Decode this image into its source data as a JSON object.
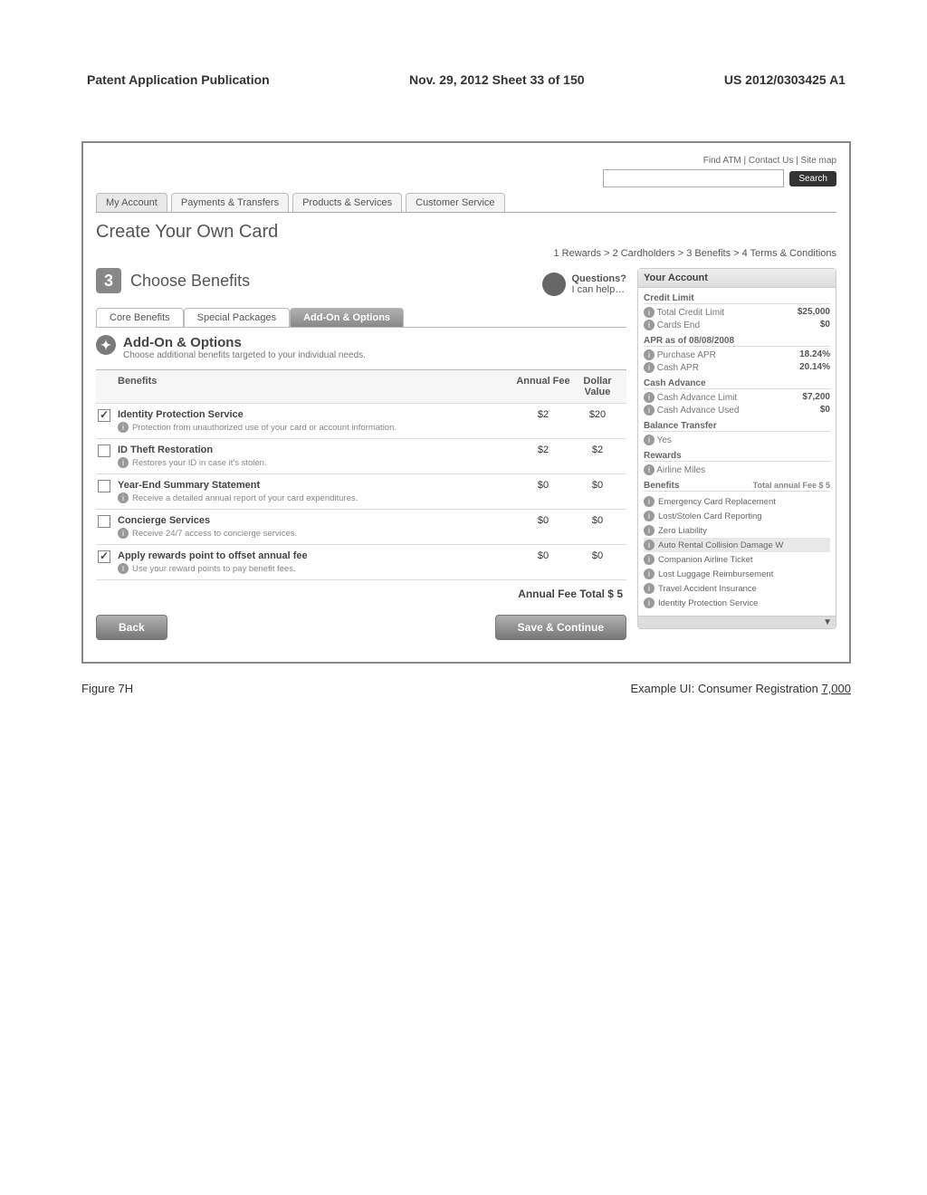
{
  "publication": {
    "left": "Patent Application Publication",
    "center": "Nov. 29, 2012  Sheet 33 of 150",
    "right": "US 2012/0303425 A1"
  },
  "topUtil": "Find ATM | Contact Us | Site map",
  "search": {
    "btn": "Search"
  },
  "navTabs": {
    "items": [
      "My Account",
      "Payments & Transfers",
      "Products & Services",
      "Customer Service"
    ],
    "activeIndex": 0
  },
  "pageTitle": "Create Your Own Card",
  "breadcrumb": "1 Rewards > 2 Cardholders > 3 Benefits > 4 Terms & Conditions",
  "step": {
    "num": "3",
    "title": "Choose Benefits"
  },
  "questions": {
    "label": "Questions?",
    "sub": "I can help…"
  },
  "subTabs": {
    "items": [
      "Core Benefits",
      "Special Packages",
      "Add-On & Options"
    ],
    "activeIndex": 2
  },
  "section": {
    "title": "Add-On & Options",
    "sub": "Choose additional benefits targeted to your individual needs."
  },
  "benefitTable": {
    "headers": {
      "name": "Benefits",
      "fee": "Annual Fee",
      "val": "Dollar Value"
    },
    "rows": [
      {
        "checked": true,
        "name": "Identity Protection Service",
        "desc": "Protection from unauthorized use of your card or account information.",
        "fee": "$2",
        "val": "$20"
      },
      {
        "checked": false,
        "name": "ID Theft Restoration",
        "desc": "Restores your ID in case it's stolen.",
        "fee": "$2",
        "val": "$2"
      },
      {
        "checked": false,
        "name": "Year-End Summary Statement",
        "desc": "Receive a detailed annual report of your card expenditures.",
        "fee": "$0",
        "val": "$0"
      },
      {
        "checked": false,
        "name": "Concierge Services",
        "desc": "Receive 24/7 access to concierge services.",
        "fee": "$0",
        "val": "$0"
      },
      {
        "checked": true,
        "name": "Apply rewards point to offset annual fee",
        "desc": "Use your reward points to pay benefit fees.",
        "fee": "$0",
        "val": "$0"
      }
    ],
    "totalLabel": "Annual Fee Total $ 5"
  },
  "buttons": {
    "back": "Back",
    "next": "Save & Continue"
  },
  "account": {
    "hdr": "Your Account",
    "creditLimit": {
      "hdr": "Credit Limit",
      "rows": [
        {
          "lab": "Total Credit Limit",
          "val": "$25,000"
        },
        {
          "lab": "Cards End",
          "val": "$0"
        }
      ]
    },
    "apr": {
      "hdr": "APR as of 08/08/2008",
      "rows": [
        {
          "lab": "Purchase APR",
          "val": "18.24%"
        },
        {
          "lab": "Cash APR",
          "val": "20.14%"
        }
      ]
    },
    "cash": {
      "hdr": "Cash Advance",
      "rows": [
        {
          "lab": "Cash Advance Limit",
          "val": "$7,200"
        },
        {
          "lab": "Cash Advance Used",
          "val": "$0"
        }
      ]
    },
    "balance": {
      "hdr": "Balance Transfer",
      "rows": [
        {
          "lab": "Yes",
          "val": ""
        }
      ]
    },
    "rewards": {
      "hdr": "Rewards",
      "rows": [
        {
          "lab": "Airline Miles",
          "val": ""
        }
      ]
    },
    "benefits": {
      "hdr": "Benefits",
      "totalLabel": "Total annual Fee $ 5",
      "items": [
        {
          "label": "Emergency Card Replacement",
          "highlight": false
        },
        {
          "label": "Lost/Stolen Card Reporting",
          "highlight": false
        },
        {
          "label": "Zero Liability",
          "highlight": false
        },
        {
          "label": "Auto Rental Collision Damage W",
          "highlight": true
        },
        {
          "label": "Companion Airline Ticket",
          "highlight": false
        },
        {
          "label": "Lost Luggage Reimbursement",
          "highlight": false
        },
        {
          "label": "Travel Accident Insurance",
          "highlight": false
        },
        {
          "label": "Identity Protection Service",
          "highlight": false
        }
      ],
      "scroll": "▼"
    }
  },
  "caption": {
    "figure": "Figure 7H",
    "right_a": "Example UI: Consumer Registration ",
    "right_b": "7,000"
  }
}
